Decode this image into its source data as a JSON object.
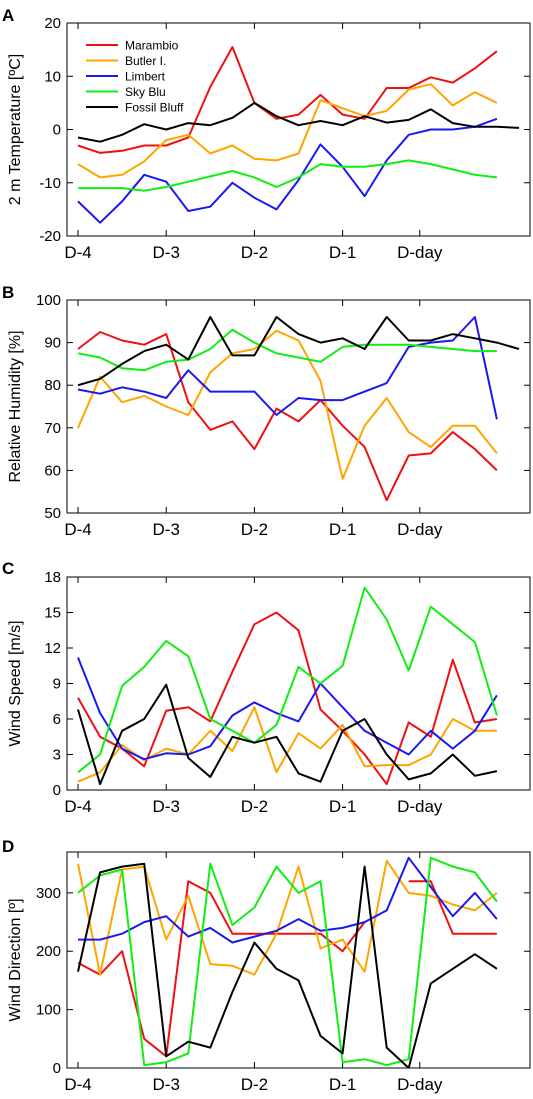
{
  "figure": {
    "x_tick_labels": [
      "D-4",
      "D-3",
      "D-2",
      "D-1",
      "D-day"
    ],
    "x_tick_positions": [
      0,
      4,
      8,
      12,
      15.5
    ],
    "xlim": [
      -0.5,
      20.5
    ]
  },
  "series_styles": [
    {
      "name": "Marambio",
      "color": "#ee1111"
    },
    {
      "name": "Butler I.",
      "color": "#ffa500"
    },
    {
      "name": "Limbert",
      "color": "#1a1aee"
    },
    {
      "name": "Sky Blu",
      "color": "#11ee11"
    },
    {
      "name": "Fossil Bluff",
      "color": "#000000"
    }
  ],
  "chart_data": [
    {
      "panel": "A",
      "type": "line",
      "ylabel": "2 m Temperature [ºC]",
      "ylim": [
        -20,
        20
      ],
      "yticks": [
        -20,
        -10,
        0,
        10,
        20
      ],
      "legend": "top-left",
      "grid": false,
      "x": [
        0,
        1,
        2,
        3,
        4,
        5,
        6,
        7,
        8,
        9,
        10,
        11,
        12,
        13,
        14,
        15,
        16,
        17,
        18,
        19,
        20
      ],
      "series": [
        {
          "name": "Marambio",
          "values": [
            -3,
            -4.4,
            -4,
            -3,
            -3,
            -1.5,
            8,
            15.5,
            5,
            2,
            2.8,
            6.5,
            2.8,
            2,
            7.8,
            7.8,
            9.8,
            8.8,
            11.5,
            14.7,
            null
          ]
        },
        {
          "name": "Butler I.",
          "values": [
            -6.5,
            -9,
            -8.5,
            -6,
            -2,
            -1,
            -4.5,
            -3,
            -5.5,
            -5.8,
            -4.5,
            5.5,
            4,
            2.5,
            3.5,
            7.5,
            8.5,
            4.5,
            7,
            5,
            null
          ]
        },
        {
          "name": "Limbert",
          "values": [
            -13.5,
            -17.5,
            -13.5,
            -8.5,
            -9.8,
            -15.3,
            -14.5,
            -10,
            -12.8,
            -15,
            -9.5,
            -2.8,
            -7,
            -12.5,
            -5.8,
            -1,
            0,
            0,
            0.5,
            2,
            null
          ]
        },
        {
          "name": "Sky Blu",
          "values": [
            -11,
            -11,
            -11,
            -11.5,
            -10.8,
            -9.8,
            -8.8,
            -7.8,
            -9,
            -10.8,
            -9,
            -6.5,
            -7,
            -7,
            -6.5,
            -5.8,
            -6.5,
            -7.5,
            -8.5,
            -9,
            null
          ]
        },
        {
          "name": "Fossil Bluff",
          "values": [
            -1.5,
            -2.3,
            -1,
            1,
            0,
            1.2,
            0.8,
            2.2,
            5,
            2.5,
            0.8,
            1.6,
            0.8,
            2.5,
            1.3,
            1.8,
            3.8,
            1.2,
            0.5,
            0.5,
            0.3
          ]
        }
      ]
    },
    {
      "panel": "B",
      "type": "line",
      "ylabel": "Relative Humidity [%]",
      "ylim": [
        50,
        100
      ],
      "yticks": [
        50,
        60,
        70,
        80,
        90,
        100
      ],
      "grid": false,
      "x": [
        0,
        1,
        2,
        3,
        4,
        5,
        6,
        7,
        8,
        9,
        10,
        11,
        12,
        13,
        14,
        15,
        16,
        17,
        18,
        19,
        20
      ],
      "series": [
        {
          "name": "Marambio",
          "values": [
            88.5,
            92.5,
            90.5,
            89.5,
            92,
            76,
            69.5,
            71.5,
            65,
            74.5,
            71.5,
            76.5,
            70.5,
            65.5,
            53,
            63.5,
            64,
            69,
            65,
            60,
            null
          ]
        },
        {
          "name": "Butler I.",
          "values": [
            70,
            82,
            76,
            77.5,
            75,
            73,
            83,
            87.5,
            88.5,
            92.8,
            90.5,
            81,
            58,
            70.5,
            77,
            69,
            65.5,
            70.5,
            70.5,
            64,
            null
          ]
        },
        {
          "name": "Limbert",
          "values": [
            79,
            78,
            79.5,
            78.5,
            77,
            83.5,
            78.5,
            78.5,
            78.5,
            73,
            77,
            76.5,
            76.5,
            78.5,
            80.5,
            89,
            90,
            90.5,
            96,
            72,
            null
          ]
        },
        {
          "name": "Sky Blu",
          "values": [
            87.5,
            86.5,
            84,
            83.5,
            85.5,
            86,
            88.5,
            93,
            90,
            87.5,
            86.5,
            85.5,
            89,
            89.5,
            89.5,
            89.5,
            89,
            88.5,
            88,
            88,
            null
          ]
        },
        {
          "name": "Fossil Bluff",
          "values": [
            80,
            81.5,
            85,
            88,
            89.5,
            86,
            96,
            87,
            87,
            96,
            92,
            90,
            91,
            88.5,
            96,
            90.5,
            90.5,
            92,
            91,
            90,
            88.5
          ]
        }
      ]
    },
    {
      "panel": "C",
      "type": "line",
      "ylabel": "Wind Speed [m/s]",
      "ylim": [
        0,
        18
      ],
      "yticks": [
        0,
        3,
        6,
        9,
        12,
        15,
        18
      ],
      "grid": false,
      "x": [
        0,
        1,
        2,
        3,
        4,
        5,
        6,
        7,
        8,
        9,
        10,
        11,
        12,
        13,
        14,
        15,
        16,
        17,
        18,
        19,
        20
      ],
      "series": [
        {
          "name": "Marambio",
          "values": [
            7.8,
            4.5,
            3.5,
            2,
            6.7,
            7,
            5.8,
            10,
            14,
            15,
            13.5,
            6.8,
            5,
            3,
            0.5,
            5.7,
            4.5,
            11,
            5.7,
            6,
            null
          ]
        },
        {
          "name": "Butler I.",
          "values": [
            0.7,
            1.5,
            3.8,
            2.5,
            3.5,
            3,
            5,
            3.3,
            7,
            1.5,
            4.8,
            3.5,
            5.5,
            2,
            2.1,
            2.1,
            3,
            6,
            5,
            5,
            null
          ]
        },
        {
          "name": "Limbert",
          "values": [
            11.2,
            6.5,
            3.5,
            2.6,
            3.1,
            3,
            3.7,
            6.3,
            7.4,
            6.5,
            5.8,
            9,
            7,
            5,
            4,
            3,
            5,
            3.5,
            5,
            8,
            null
          ]
        },
        {
          "name": "Sky Blu",
          "values": [
            1.5,
            3,
            8.8,
            10.4,
            12.6,
            11.3,
            6,
            5,
            4,
            5.5,
            10.4,
            9,
            10.5,
            17.1,
            14.4,
            10.1,
            15.5,
            14,
            12.5,
            6.3,
            null
          ]
        },
        {
          "name": "Fossil Bluff",
          "values": [
            6.8,
            0.5,
            5,
            6,
            8.9,
            2.7,
            1.1,
            4.5,
            4,
            4.5,
            1.4,
            0.7,
            5,
            6,
            3,
            0.9,
            1.4,
            3,
            1.2,
            1.6,
            null
          ]
        }
      ]
    },
    {
      "panel": "D",
      "type": "line",
      "ylabel": "Wind Direction [º]",
      "ylim": [
        0,
        370
      ],
      "yticks": [
        0,
        100,
        200,
        300
      ],
      "grid": false,
      "x": [
        0,
        1,
        2,
        3,
        4,
        5,
        6,
        7,
        8,
        9,
        10,
        11,
        12,
        13,
        14,
        15,
        16,
        17,
        18,
        19,
        20
      ],
      "series": [
        {
          "name": "Marambio",
          "values": [
            180,
            160,
            200,
            50,
            20,
            320,
            300,
            230,
            230,
            230,
            230,
            230,
            200,
            250,
            null,
            320,
            320,
            230,
            230,
            230,
            null
          ]
        },
        {
          "name": "Butler I.",
          "values": [
            350,
            160,
            340,
            345,
            220,
            295,
            178,
            175,
            160,
            230,
            345,
            205,
            220,
            165,
            355,
            300,
            295,
            280,
            270,
            300,
            null
          ]
        },
        {
          "name": "Limbert",
          "values": [
            220,
            220,
            230,
            250,
            260,
            225,
            240,
            215,
            225,
            235,
            255,
            235,
            240,
            250,
            270,
            360,
            310,
            260,
            300,
            255,
            null
          ]
        },
        {
          "name": "Sky Blu",
          "values": [
            300,
            330,
            340,
            5,
            10,
            25,
            350,
            245,
            275,
            345,
            300,
            320,
            10,
            15,
            5,
            15,
            360,
            345,
            335,
            285,
            null
          ]
        },
        {
          "name": "Fossil Bluff",
          "values": [
            165,
            335,
            345,
            350,
            20,
            45,
            35,
            130,
            215,
            170,
            150,
            55,
            25,
            345,
            35,
            0,
            145,
            170,
            195,
            170,
            null
          ]
        }
      ]
    }
  ]
}
